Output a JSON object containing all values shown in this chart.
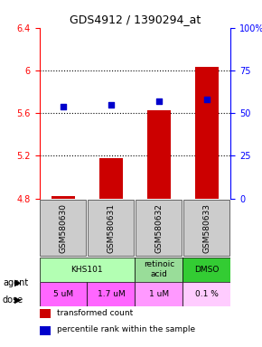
{
  "title": "GDS4912 / 1390294_at",
  "samples": [
    "GSM580630",
    "GSM580631",
    "GSM580632",
    "GSM580633"
  ],
  "bar_values": [
    4.82,
    5.18,
    5.63,
    6.03
  ],
  "percentile_values": [
    54,
    55,
    57,
    58
  ],
  "ylim_left": [
    4.8,
    6.4
  ],
  "ylim_right": [
    0,
    100
  ],
  "yticks_left": [
    4.8,
    5.2,
    5.6,
    6.0,
    6.4
  ],
  "yticks_right": [
    0,
    25,
    50,
    75,
    100
  ],
  "ytick_labels_left": [
    "4.8",
    "5.2",
    "5.6",
    "6",
    "6.4"
  ],
  "ytick_labels_right": [
    "0",
    "25",
    "50",
    "75",
    "100%"
  ],
  "hlines": [
    5.6,
    6.0,
    5.2
  ],
  "bar_color": "#cc0000",
  "dot_color": "#0000cc",
  "agent_row": [
    {
      "label": "KHS101",
      "span": [
        0,
        2
      ],
      "color": "#b3ffb3"
    },
    {
      "label": "retinoic\nacid",
      "span": [
        2,
        3
      ],
      "color": "#99dd99"
    },
    {
      "label": "DMSO",
      "span": [
        3,
        4
      ],
      "color": "#33cc33"
    }
  ],
  "dose_row": [
    {
      "label": "5 uM",
      "span": [
        0,
        1
      ],
      "color": "#ff66ff"
    },
    {
      "label": "1.7 uM",
      "span": [
        1,
        2
      ],
      "color": "#ff66ff"
    },
    {
      "label": "1 uM",
      "span": [
        2,
        3
      ],
      "color": "#ff99ff"
    },
    {
      "label": "0.1 %",
      "span": [
        3,
        4
      ],
      "color": "#ffccff"
    }
  ],
  "legend_items": [
    {
      "color": "#cc0000",
      "label": "transformed count"
    },
    {
      "color": "#0000cc",
      "label": "percentile rank within the sample"
    }
  ],
  "bar_width": 0.5,
  "sample_bg_color": "#cccccc",
  "sample_border_color": "#333333"
}
